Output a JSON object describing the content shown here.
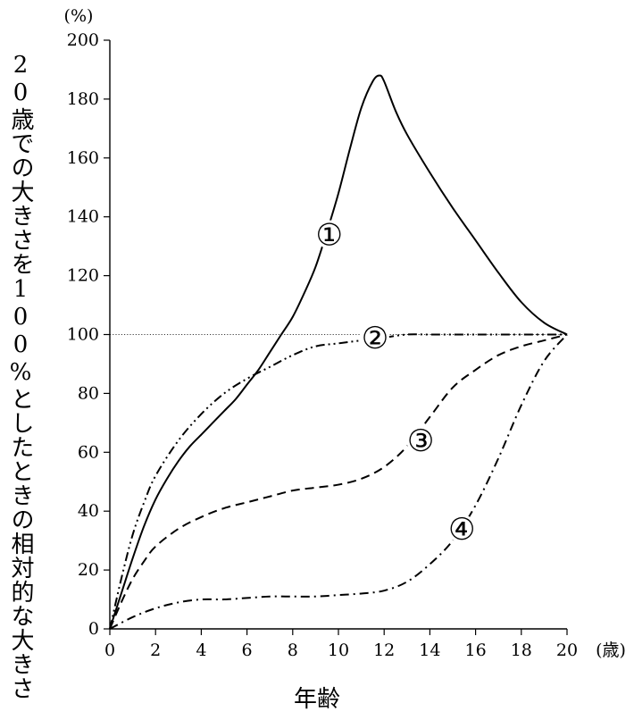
{
  "chart_data": {
    "type": "line",
    "title": "",
    "xlabel": "年齢",
    "ylabel": "20歳での大きさを100%としたときの相対的な大きさ",
    "y_unit": "(%)",
    "x_unit": "(歳)",
    "xlim": [
      0,
      20
    ],
    "ylim": [
      0,
      200
    ],
    "x_ticks": [
      "0",
      "2",
      "4",
      "6",
      "8",
      "10",
      "12",
      "14",
      "16",
      "18",
      "20"
    ],
    "y_ticks": [
      "0",
      "20",
      "40",
      "60",
      "80",
      "100",
      "120",
      "140",
      "160",
      "180",
      "200"
    ],
    "reference_line": {
      "y": 100,
      "style": "dotted"
    },
    "grid": false,
    "series": [
      {
        "name": "①",
        "style": "solid",
        "x": [
          0,
          0.5,
          1,
          1.5,
          2,
          2.5,
          3,
          3.5,
          4,
          4.5,
          5,
          5.5,
          6,
          6.5,
          7,
          7.5,
          8,
          8.5,
          9,
          9.5,
          10,
          10.5,
          11,
          11.5,
          11.8,
          12,
          12.5,
          13,
          14,
          15,
          16,
          17,
          18,
          19,
          20
        ],
        "y": [
          0,
          12,
          24,
          35,
          44,
          51,
          57,
          62,
          66,
          70,
          74,
          78,
          83,
          88,
          94,
          100,
          106,
          114,
          123,
          135,
          148,
          163,
          177,
          186,
          188,
          186,
          176,
          168,
          155,
          143,
          132,
          121,
          111,
          104,
          100
        ]
      },
      {
        "name": "②",
        "style": "dash-dot-dot",
        "x": [
          0,
          0.5,
          1,
          1.5,
          2,
          3,
          4,
          5,
          6,
          7,
          8,
          9,
          10,
          11,
          12,
          13,
          14,
          16,
          18,
          20
        ],
        "y": [
          0,
          17,
          32,
          43,
          52,
          64,
          73,
          80,
          85,
          89,
          93,
          96,
          97,
          98,
          99,
          100,
          100,
          100,
          100,
          100
        ]
      },
      {
        "name": "③",
        "style": "dashed",
        "x": [
          0,
          0.5,
          1,
          1.5,
          2,
          3,
          4,
          5,
          6,
          7,
          8,
          9,
          10,
          11,
          12,
          13,
          14,
          15,
          16,
          17,
          18,
          19,
          20
        ],
        "y": [
          0,
          9,
          17,
          23,
          28,
          34,
          38,
          41,
          43,
          45,
          47,
          48,
          49,
          51,
          55,
          62,
          72,
          82,
          88,
          93,
          96,
          98,
          100
        ]
      },
      {
        "name": "④",
        "style": "dash-dot",
        "x": [
          0,
          1,
          2,
          3,
          4,
          5,
          6,
          7,
          8,
          9,
          10,
          11,
          12,
          13,
          14,
          15,
          16,
          17,
          18,
          19,
          20
        ],
        "y": [
          0,
          4,
          7,
          9,
          10,
          10,
          10.5,
          11,
          11,
          11,
          11.5,
          12,
          13,
          16,
          22,
          30,
          42,
          58,
          76,
          91,
          100
        ]
      }
    ],
    "series_labels": [
      {
        "text": "①",
        "x": 9.6,
        "y": 134
      },
      {
        "text": "②",
        "x": 11.6,
        "y": 99
      },
      {
        "text": "③",
        "x": 13.6,
        "y": 64
      },
      {
        "text": "④",
        "x": 15.4,
        "y": 34
      }
    ]
  }
}
